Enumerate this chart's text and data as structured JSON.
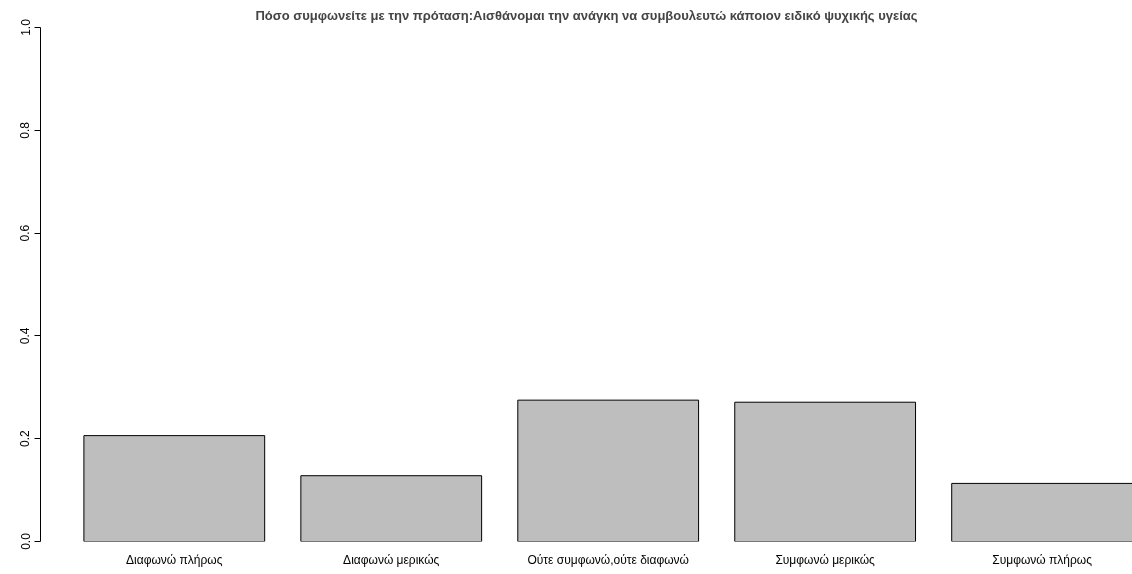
{
  "chart_data": {
    "type": "bar",
    "title": "Πόσο συμφωνείτε με την πρόταση:Αισθάνομαι την ανάγκη να συμβουλευτώ κάποιον ειδικό ψυχικής υγείας",
    "categories": [
      "Διαφωνώ πλήρως",
      "Διαφωνώ μερικώς",
      "Ούτε συμφωνώ,ούτε διαφωνώ",
      "Συμφωνώ μερικώς",
      "Συμφωνώ πλήρως"
    ],
    "values": [
      0.206,
      0.128,
      0.275,
      0.271,
      0.113
    ],
    "color": "#bebebe",
    "ylim": [
      0,
      1
    ],
    "yticks": [
      {
        "value": 0,
        "label": "0.0"
      },
      {
        "value": 0.2,
        "label": "0.2"
      },
      {
        "value": 0.4,
        "label": "0.4"
      },
      {
        "value": 0.6,
        "label": "0.6"
      },
      {
        "value": 0.8,
        "label": "0.8"
      },
      {
        "value": 1,
        "label": "1.0"
      }
    ],
    "grid": false
  }
}
